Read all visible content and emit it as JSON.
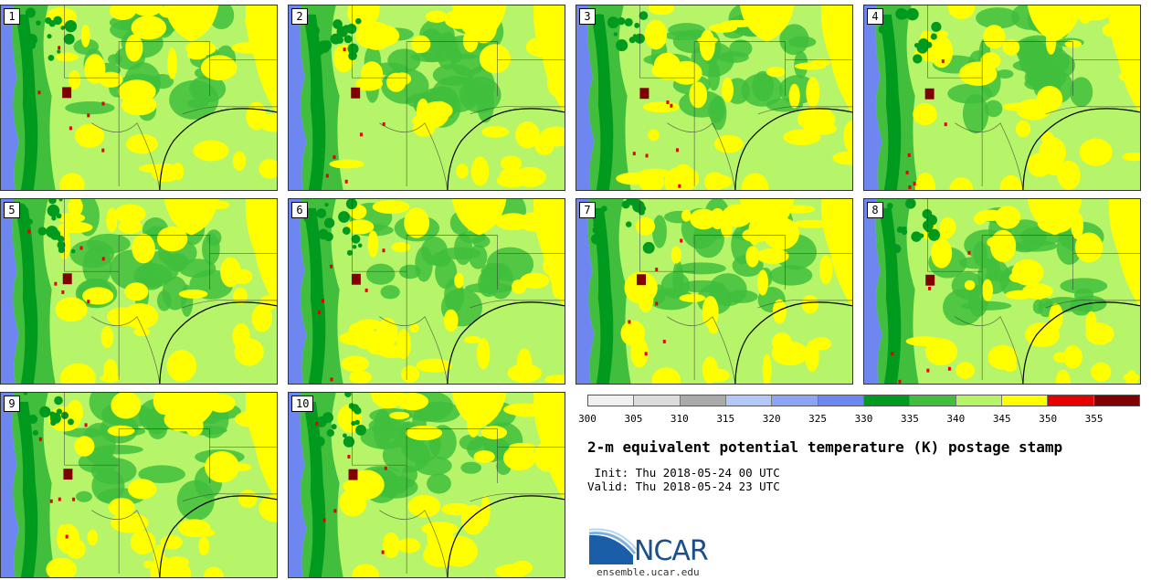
{
  "stamps": [
    {
      "label": "1"
    },
    {
      "label": "2"
    },
    {
      "label": "3"
    },
    {
      "label": "4"
    },
    {
      "label": "5"
    },
    {
      "label": "6"
    },
    {
      "label": "7"
    },
    {
      "label": "8"
    },
    {
      "label": "9"
    },
    {
      "label": "10"
    }
  ],
  "legend": {
    "colors": [
      "#f0f0f0",
      "#dcdcdc",
      "#aaaaaa",
      "#b4c8f8",
      "#8ca4f4",
      "#6e86f0",
      "#009a1e",
      "#40be3c",
      "#b6f46a",
      "#ffff00",
      "#e60000",
      "#800000"
    ],
    "ticks": [
      "300",
      "305",
      "310",
      "315",
      "320",
      "325",
      "330",
      "335",
      "340",
      "345",
      "350",
      "355"
    ]
  },
  "title": "2-m equivalent potential temperature (K) postage stamp",
  "init": " Init: Thu 2018-05-24 00 UTC",
  "valid": "Valid: Thu 2018-05-24 23 UTC",
  "logo": {
    "text": "NCAR",
    "site": "ensemble.ucar.edu",
    "color": "#1a4f8a"
  }
}
